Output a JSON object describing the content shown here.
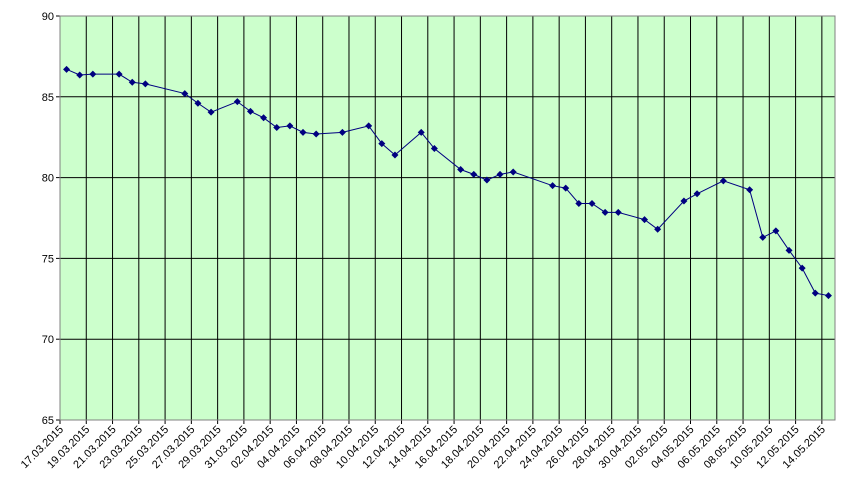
{
  "chart_data": {
    "type": "line",
    "x": [
      "17.03.2015",
      "18.03.2015",
      "19.03.2015",
      "21.03.2015",
      "22.03.2015",
      "23.03.2015",
      "26.03.2015",
      "27.03.2015",
      "28.03.2015",
      "30.03.2015",
      "31.03.2015",
      "01.04.2015",
      "02.04.2015",
      "03.04.2015",
      "04.04.2015",
      "05.04.2015",
      "07.04.2015",
      "09.04.2015",
      "10.04.2015",
      "11.04.2015",
      "13.04.2015",
      "14.04.2015",
      "16.04.2015",
      "17.04.2015",
      "18.04.2015",
      "19.04.2015",
      "20.04.2015",
      "23.04.2015",
      "24.04.2015",
      "25.04.2015",
      "26.04.2015",
      "27.04.2015",
      "28.04.2015",
      "30.04.2015",
      "01.05.2015",
      "03.05.2015",
      "04.05.2015",
      "06.05.2015",
      "08.05.2015",
      "09.05.2015",
      "10.05.2015",
      "11.05.2015",
      "12.05.2015",
      "13.05.2015",
      "14.05.2015"
    ],
    "values": [
      86.7,
      86.35,
      86.4,
      86.4,
      85.9,
      85.8,
      85.2,
      84.6,
      84.05,
      84.7,
      84.1,
      83.7,
      83.1,
      83.2,
      82.8,
      82.7,
      82.8,
      83.2,
      82.1,
      81.4,
      82.8,
      81.8,
      80.5,
      80.2,
      79.85,
      80.2,
      80.35,
      79.5,
      79.35,
      78.4,
      78.4,
      77.85,
      77.85,
      77.4,
      76.8,
      78.55,
      79.0,
      79.8,
      79.25,
      76.3,
      76.7,
      75.5,
      74.4,
      72.85,
      72.7
    ],
    "color": "#000080",
    "xlim": [
      "17.03.2015",
      "15.05.2015"
    ],
    "xticks": [
      "17.03.2015",
      "19.03.2015",
      "21.03.2015",
      "23.03.2015",
      "25.03.2015",
      "27.03.2015",
      "29.03.2015",
      "31.03.2015",
      "02.04.2015",
      "04.04.2015",
      "06.04.2015",
      "08.04.2015",
      "10.04.2015",
      "12.04.2015",
      "14.04.2015",
      "16.04.2015",
      "18.04.2015",
      "20.04.2015",
      "22.04.2015",
      "24.04.2015",
      "26.04.2015",
      "28.04.2015",
      "30.04.2015",
      "02.05.2015",
      "04.05.2015",
      "06.05.2015",
      "08.05.2015",
      "10.05.2015",
      "12.05.2015",
      "14.05.2015"
    ],
    "ylim": [
      65,
      90
    ],
    "yticks": [
      65,
      70,
      75,
      80,
      85,
      90
    ],
    "grid": true,
    "plot_background": "#ccffcc"
  }
}
